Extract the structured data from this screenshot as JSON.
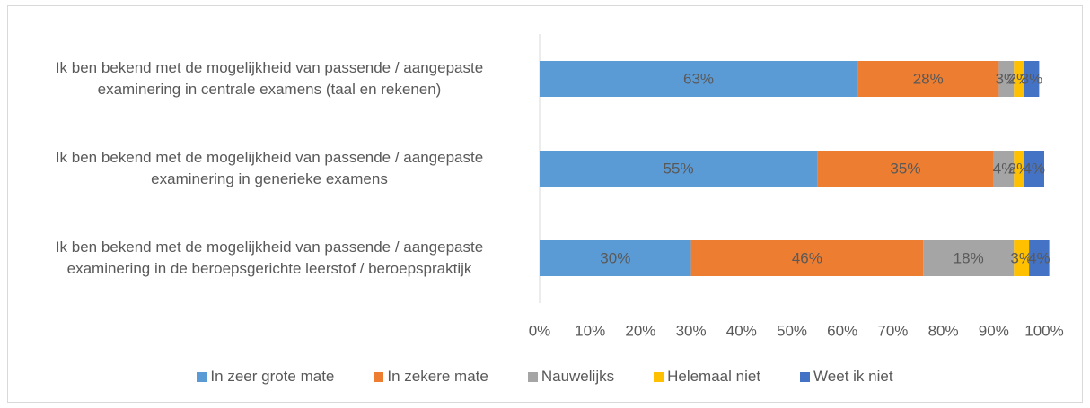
{
  "chart_data": {
    "type": "stacked-bar-horizontal",
    "categories": [
      "Ik ben bekend met de mogelijkheid van passende / aangepaste examinering in centrale examens (taal en rekenen)",
      "Ik ben bekend met de mogelijkheid van passende / aangepaste examinering in generieke examens",
      "Ik ben bekend met de mogelijkheid van passende / aangepaste examinering in de beroepsgerichte leerstof / beroepspraktijk"
    ],
    "series": [
      {
        "name": "In zeer grote mate",
        "color": "#5b9bd5",
        "values": [
          63,
          55,
          30
        ],
        "value_labels": [
          "63%",
          "55%",
          "30%"
        ]
      },
      {
        "name": "In zekere mate",
        "color": "#ed7d31",
        "values": [
          28,
          35,
          46
        ],
        "value_labels": [
          "28%",
          "35%",
          "46%"
        ]
      },
      {
        "name": "Nauwelijks",
        "color": "#a5a5a5",
        "values": [
          3,
          4,
          18
        ],
        "value_labels": [
          "3%",
          "4%",
          "18%"
        ]
      },
      {
        "name": "Helemaal niet",
        "color": "#ffc000",
        "values": [
          2,
          2,
          3
        ],
        "value_labels": [
          "2%",
          "2%",
          "3%"
        ]
      },
      {
        "name": "Weet ik niet",
        "color": "#4472c4",
        "values": [
          3,
          4,
          4
        ],
        "value_labels": [
          "3%",
          "4%",
          "4%"
        ]
      }
    ],
    "xlim": [
      0,
      100
    ],
    "xticks": [
      {
        "value": 0,
        "label": "0%"
      },
      {
        "value": 10,
        "label": "10%"
      },
      {
        "value": 20,
        "label": "20%"
      },
      {
        "value": 30,
        "label": "30%"
      },
      {
        "value": 40,
        "label": "40%"
      },
      {
        "value": 50,
        "label": "50%"
      },
      {
        "value": 60,
        "label": "60%"
      },
      {
        "value": 70,
        "label": "70%"
      },
      {
        "value": 80,
        "label": "80%"
      },
      {
        "value": 90,
        "label": "90%"
      },
      {
        "value": 100,
        "label": "100%"
      }
    ],
    "legend": "bottom"
  }
}
